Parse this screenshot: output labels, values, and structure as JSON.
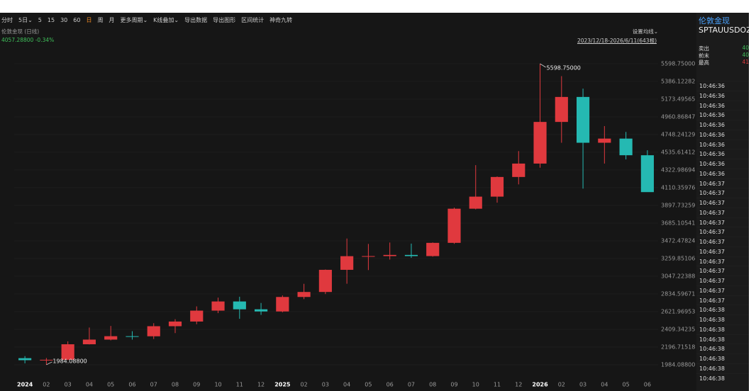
{
  "toolbar": {
    "items": [
      "分时",
      "5日⌄",
      "5",
      "15",
      "30",
      "60",
      "日",
      "周",
      "月",
      "更多周期⌄",
      "K线叠加⌄",
      "导出数据",
      "导出图形",
      "区间统计",
      "神奇九转"
    ],
    "active_index": 6
  },
  "chart_header": {
    "title": "伦敦金现 (日线)",
    "quote": "4057.28800 -0.34%",
    "ma_setting": "设置均线⌄",
    "range": "2023/12/18-2026/6/11(643根)"
  },
  "chart_data": {
    "type": "candlestick",
    "categories": [
      "2024",
      "02",
      "03",
      "04",
      "05",
      "06",
      "07",
      "08",
      "09",
      "10",
      "11",
      "12",
      "2025",
      "02",
      "03",
      "04",
      "05",
      "06",
      "07",
      "08",
      "09",
      "10",
      "11",
      "12",
      "2026",
      "02",
      "03",
      "04",
      "05",
      "06"
    ],
    "open": [
      2063,
      2039,
      2044,
      2230,
      2286,
      2327,
      2326,
      2447,
      2503,
      2634,
      2744,
      2650,
      2624,
      2798,
      2858,
      3124,
      3288,
      3289,
      3303,
      3289,
      3448,
      3858,
      4003,
      4239,
      4400,
      4900,
      5200,
      4650,
      4700,
      4500
    ],
    "high": [
      2088,
      2065,
      2265,
      2431,
      2450,
      2387,
      2483,
      2531,
      2685,
      2790,
      2801,
      2726,
      2817,
      2956,
      3128,
      3500,
      3435,
      3452,
      3439,
      3453,
      3871,
      4381,
      4245,
      4550,
      5598.75,
      5450,
      5300,
      4850,
      4780,
      4560
    ],
    "low": [
      2001,
      1984.088,
      2039,
      2228,
      2277,
      2286,
      2293,
      2364,
      2471,
      2604,
      2536,
      2583,
      2614,
      2772,
      2833,
      2957,
      3121,
      3247,
      3268,
      3282,
      3436,
      3850,
      3930,
      4150,
      4350,
      4650,
      4100,
      4400,
      4450,
      4070
    ],
    "close": [
      2039,
      2044,
      2230,
      2286,
      2327,
      2326,
      2447,
      2503,
      2634,
      2744,
      2650,
      2624,
      2798,
      2858,
      3124,
      3288,
      3289,
      3303,
      3289,
      3448,
      3858,
      4003,
      4239,
      4400,
      4900,
      5200,
      4650,
      4700,
      4500,
      4057.288
    ],
    "up_color": "#e0393e",
    "down_color": "#25b9b2",
    "high_label": "5598.75000",
    "low_label": "1984.08800",
    "ylim": [
      1856,
      6024
    ],
    "yticks": [
      {
        "value": 1984.088,
        "label": "1984.08800"
      },
      {
        "value": 2196.71518,
        "label": "2196.71518"
      },
      {
        "value": 2409.34235,
        "label": "2409.34235"
      },
      {
        "value": 2621.96953,
        "label": "2621.96953"
      },
      {
        "value": 2834.59671,
        "label": "2834.59671"
      },
      {
        "value": 3047.22388,
        "label": "3047.22388"
      },
      {
        "value": 3259.85106,
        "label": "3259.85106"
      },
      {
        "value": 3472.47824,
        "label": "3472.47824"
      },
      {
        "value": 3685.10541,
        "label": "3685.10541"
      },
      {
        "value": 3897.73259,
        "label": "3897.73259"
      },
      {
        "value": 4110.35976,
        "label": "4110.35976"
      },
      {
        "value": 4322.98694,
        "label": "4322.98694"
      },
      {
        "value": 4535.61412,
        "label": "4535.61412"
      },
      {
        "value": 4748.24129,
        "label": "4748.24129"
      },
      {
        "value": 4960.86847,
        "label": "4960.86847"
      },
      {
        "value": 5173.49565,
        "label": "5173.49565"
      },
      {
        "value": 5386.12282,
        "label": "5386.12282"
      },
      {
        "value": 5598.75,
        "label": "5598.75000"
      }
    ],
    "grid": true
  },
  "side_panel": {
    "name": "伦敦金现",
    "code": "SPTAUUSDOZ",
    "quotes": [
      {
        "label": "卖出",
        "value": "40"
      },
      {
        "label": "前末",
        "value": "40"
      },
      {
        "label": "最高",
        "value": "41"
      }
    ],
    "times": [
      "10:46:36",
      "10:46:36",
      "10:46:36",
      "10:46:36",
      "10:46:36",
      "10:46:36",
      "10:46:36",
      "10:46:36",
      "10:46:36",
      "10:46:36",
      "10:46:37",
      "10:46:37",
      "10:46:37",
      "10:46:37",
      "10:46:37",
      "10:46:37",
      "10:46:37",
      "10:46:37",
      "10:46:37",
      "10:46:37",
      "10:46:37",
      "10:46:37",
      "10:46:37",
      "10:46:38",
      "10:46:38",
      "10:46:38",
      "10:46:38",
      "10:46:38",
      "10:46:38",
      "10:46:38",
      "10:46:38"
    ]
  }
}
